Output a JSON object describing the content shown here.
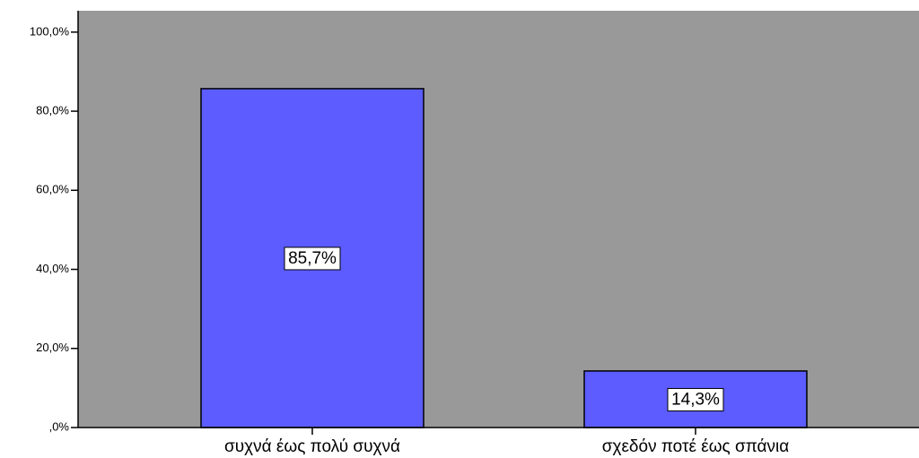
{
  "chart_data": {
    "type": "bar",
    "categories": [
      "συχνά έως πολύ συχνά",
      "σχεδόν ποτέ έως σπάνια"
    ],
    "values": [
      85.7,
      14.3
    ],
    "value_labels": [
      "85,7%",
      "14,3%"
    ],
    "color": "#5c5cff",
    "background": "#999999",
    "ylim": [
      0,
      105.4
    ],
    "yticks": [
      {
        "value": 0,
        "label": ",0%"
      },
      {
        "value": 20,
        "label": "20,0%"
      },
      {
        "value": 40,
        "label": "40,0%"
      },
      {
        "value": 60,
        "label": "60,0%"
      },
      {
        "value": 80,
        "label": "80,0%"
      },
      {
        "value": 100,
        "label": "100,0%"
      }
    ],
    "grid": false
  }
}
